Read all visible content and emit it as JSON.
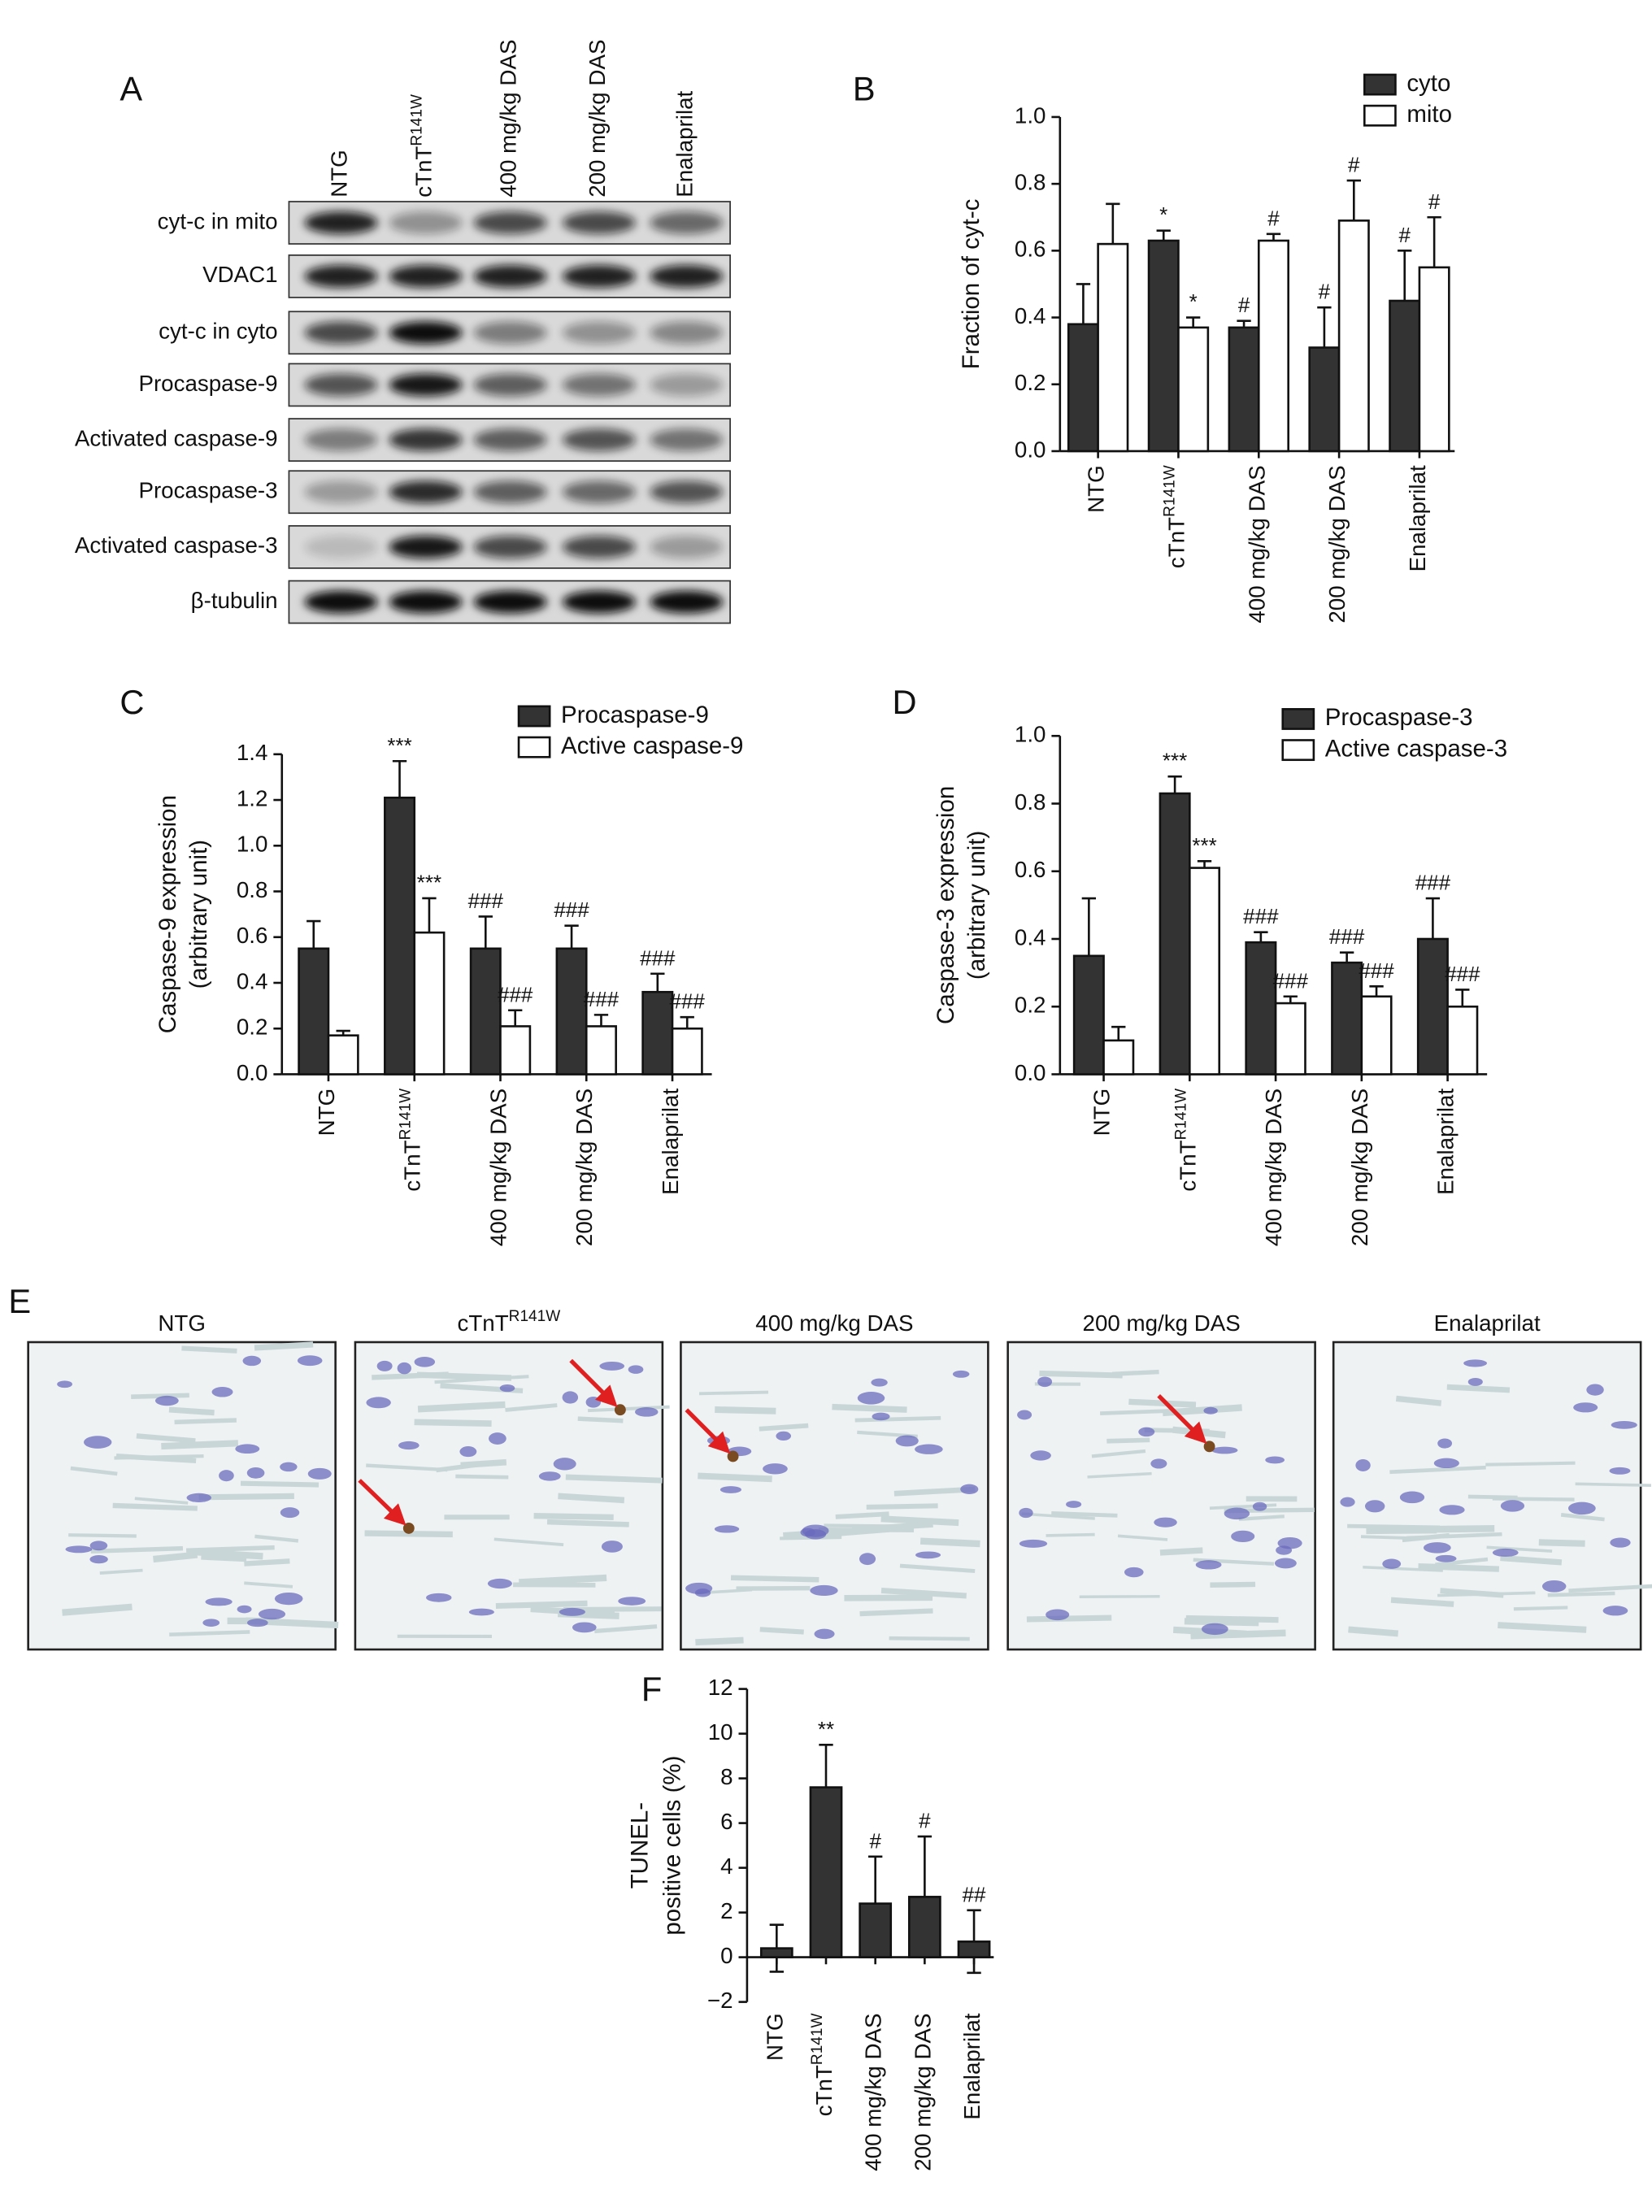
{
  "figure": {
    "panel_labels": [
      "A",
      "B",
      "C",
      "D",
      "E",
      "F"
    ]
  },
  "blot": {
    "lanes": [
      "NTG",
      "cTnT",
      "400 mg/kg DAS",
      "200 mg/kg DAS",
      "Enalaprilat"
    ],
    "lane_superscripts": [
      null,
      "R141W",
      null,
      null,
      null
    ],
    "rows": [
      "cyt-c in mito",
      "VDAC1",
      "cyt-c in cyto",
      "Procaspase-9",
      "Activated caspase-9",
      "Procaspase-3",
      "Activated caspase-3",
      "β-tubulin"
    ]
  },
  "histology": {
    "titles": [
      "NTG",
      "cTnT",
      "400 mg/kg DAS",
      "200 mg/kg DAS",
      "Enalaprilat"
    ],
    "title_superscripts": [
      null,
      "R141W",
      null,
      null,
      null
    ]
  },
  "chart_data": [
    {
      "type": "bar",
      "ylabel": [
        "Fraction of cyt-c"
      ],
      "categories": [
        "NTG",
        "cTnT",
        "400 mg/kg DAS",
        "200 mg/kg DAS",
        "Enalaprilat"
      ],
      "category_superscripts": [
        null,
        "R141W",
        null,
        null,
        null
      ],
      "series": [
        {
          "name": "cyto",
          "color": "#333333",
          "values": [
            0.38,
            0.63,
            0.37,
            0.31,
            0.45
          ],
          "errors": [
            0.12,
            0.03,
            0.02,
            0.12,
            0.15
          ],
          "annotations": [
            null,
            "*",
            "#",
            "#",
            "#"
          ]
        },
        {
          "name": "mito",
          "color": "#ffffff",
          "values": [
            0.62,
            0.37,
            0.63,
            0.69,
            0.55
          ],
          "errors": [
            0.12,
            0.03,
            0.02,
            0.12,
            0.15
          ],
          "annotations": [
            null,
            "*",
            "#",
            "#",
            "#"
          ]
        }
      ],
      "error_bars": "up",
      "ylim": [
        0,
        1
      ],
      "yticks": [
        {
          "value": 0,
          "label": "0.0"
        },
        0.2,
        0.4,
        0.6,
        0.8,
        {
          "value": 1,
          "label": "1.0"
        }
      ]
    },
    {
      "type": "bar",
      "ylabel": [
        "Caspase-9 expression",
        "(arbitrary unit)"
      ],
      "categories": [
        "NTG",
        "cTnT",
        "400 mg/kg DAS",
        "200 mg/kg DAS",
        "Enalaprilat"
      ],
      "category_superscripts": [
        null,
        "R141W",
        null,
        null,
        null
      ],
      "series": [
        {
          "name": "Procaspase-9",
          "color": "#333333",
          "values": [
            0.55,
            1.21,
            0.55,
            0.55,
            0.36
          ],
          "errors": [
            0.12,
            0.16,
            0.14,
            0.1,
            0.08
          ],
          "annotations": [
            null,
            "***",
            "###",
            "###",
            "###"
          ]
        },
        {
          "name": "Active caspase-9",
          "color": "#ffffff",
          "values": [
            0.17,
            0.62,
            0.21,
            0.21,
            0.2
          ],
          "errors": [
            0.02,
            0.15,
            0.07,
            0.05,
            0.05
          ],
          "annotations": [
            null,
            "***",
            "###",
            "###",
            "###"
          ]
        }
      ],
      "error_bars": "up",
      "ylim": [
        0,
        1.4
      ],
      "yticks": [
        {
          "value": 0,
          "label": "0.0"
        },
        0.2,
        0.4,
        0.6,
        0.8,
        {
          "value": 1,
          "label": "1.0"
        },
        1.2,
        1.4
      ]
    },
    {
      "type": "bar",
      "ylabel": [
        "Caspase-3 expression",
        "(arbitrary unit)"
      ],
      "categories": [
        "NTG",
        "cTnT",
        "400 mg/kg DAS",
        "200 mg/kg DAS",
        "Enalaprilat"
      ],
      "category_superscripts": [
        null,
        "R141W",
        null,
        null,
        null
      ],
      "series": [
        {
          "name": "Procaspase-3",
          "color": "#333333",
          "values": [
            0.35,
            0.83,
            0.39,
            0.33,
            0.4
          ],
          "errors": [
            0.17,
            0.05,
            0.03,
            0.03,
            0.12
          ],
          "annotations": [
            null,
            "***",
            "###",
            "###",
            "###"
          ]
        },
        {
          "name": "Active caspase-3",
          "color": "#ffffff",
          "values": [
            0.1,
            0.61,
            0.21,
            0.23,
            0.2
          ],
          "errors": [
            0.04,
            0.02,
            0.02,
            0.03,
            0.05
          ],
          "annotations": [
            null,
            "***",
            "###",
            "###",
            "###"
          ]
        }
      ],
      "error_bars": "up",
      "ylim": [
        0,
        1
      ],
      "yticks": [
        {
          "value": 0,
          "label": "0.0"
        },
        0.2,
        0.4,
        0.6,
        0.8,
        {
          "value": 1,
          "label": "1.0"
        }
      ]
    },
    {
      "type": "bar",
      "ylabel": [
        "TUNEL-",
        "positive cells (%)"
      ],
      "categories": [
        "NTG",
        "cTnT",
        "400 mg/kg DAS",
        "200 mg/kg DAS",
        "Enalaprilat"
      ],
      "category_superscripts": [
        null,
        "R141W",
        null,
        null,
        null
      ],
      "series": [
        {
          "color": "#333333",
          "values": [
            0.4,
            7.6,
            2.4,
            2.7,
            0.7
          ],
          "errors": [
            1.05,
            1.9,
            2.1,
            2.7,
            1.4
          ],
          "annotations": [
            null,
            "**",
            "#",
            "#",
            "##"
          ]
        }
      ],
      "error_bars": "both",
      "ylim": [
        -2,
        12
      ],
      "yticks": [
        {
          "value": -2,
          "label": "−2"
        },
        0,
        2,
        4,
        6,
        8,
        10,
        12
      ]
    }
  ]
}
